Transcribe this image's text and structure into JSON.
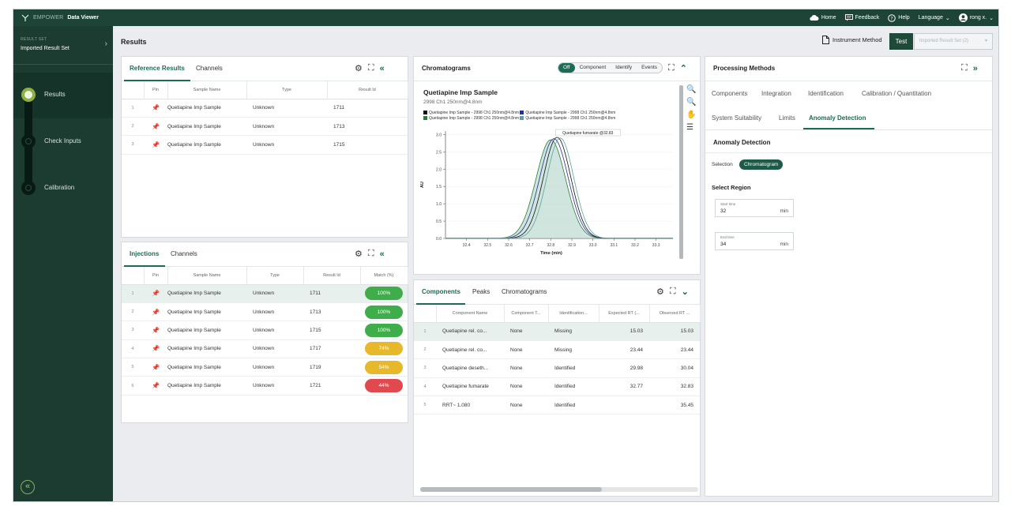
{
  "app": {
    "brand_prefix": "EMPOWER",
    "brand_name": "Data Viewer"
  },
  "topnav": {
    "home": "Home",
    "feedback": "Feedback",
    "help": "Help",
    "language": "Language",
    "user": "rong x."
  },
  "sidebar": {
    "result_set_label": "RESULT SET",
    "result_set_value": "Imported Result Set",
    "steps": [
      {
        "label": "Results",
        "active": true
      },
      {
        "label": "Check Inputs",
        "active": false
      },
      {
        "label": "Calibration",
        "active": false
      }
    ]
  },
  "header": {
    "title": "Results",
    "instrument_method": "Instrument Method",
    "test_button": "Test",
    "result_set_select": "Imported Result Set (2)"
  },
  "reference_results": {
    "tabs": [
      "Reference Results",
      "Channels"
    ],
    "columns": [
      "Pin",
      "Sample Name",
      "Type",
      "Result Id"
    ],
    "rows": [
      {
        "n": "1",
        "name": "Quetiapine Imp Sample",
        "type": "Unknown",
        "id": "1711"
      },
      {
        "n": "2",
        "name": "Quetiapine Imp Sample",
        "type": "Unknown",
        "id": "1713"
      },
      {
        "n": "3",
        "name": "Quetiapine Imp Sample",
        "type": "Unknown",
        "id": "1715"
      }
    ]
  },
  "injections": {
    "tabs": [
      "Injections",
      "Channels"
    ],
    "columns": [
      "Pin",
      "Sample Name",
      "Type",
      "Result Id",
      "Match (%)"
    ],
    "rows": [
      {
        "n": "1",
        "name": "Quetiapine Imp Sample",
        "type": "Unknown",
        "id": "1711",
        "match": "100%",
        "color": "#3fae4a"
      },
      {
        "n": "2",
        "name": "Quetiapine Imp Sample",
        "type": "Unknown",
        "id": "1713",
        "match": "100%",
        "color": "#3fae4a"
      },
      {
        "n": "3",
        "name": "Quetiapine Imp Sample",
        "type": "Unknown",
        "id": "1715",
        "match": "100%",
        "color": "#3fae4a"
      },
      {
        "n": "4",
        "name": "Quetiapine Imp Sample",
        "type": "Unknown",
        "id": "1717",
        "match": "74%",
        "color": "#e7b92a"
      },
      {
        "n": "5",
        "name": "Quetiapine Imp Sample",
        "type": "Unknown",
        "id": "1719",
        "match": "54%",
        "color": "#e7b92a"
      },
      {
        "n": "6",
        "name": "Quetiapine Imp Sample",
        "type": "Unknown",
        "id": "1721",
        "match": "44%",
        "color": "#e04a4f"
      }
    ]
  },
  "chromatograms": {
    "title": "Chromatograms",
    "toggle": [
      "Off",
      "Component",
      "Identify",
      "Events"
    ],
    "sample_title": "Quetiapine Imp Sample",
    "sample_sub": "2998 Ch1 250nm@4.8nm",
    "legend": [
      {
        "label": "Quetiapine Imp Sample - 2998 Ch1 250nm@4.8nm",
        "color": "#111111"
      },
      {
        "label": "Quetiapine Imp Sample - 2998 Ch1 250nm@4.8nm",
        "color": "#23318f"
      },
      {
        "label": "Quetiapine Imp Sample - 2998 Ch1 250nm@4.8nm",
        "color": "#2d7a3a"
      },
      {
        "label": "Quetiapine Imp Sample - 2998 Ch1 250nm@4.8nm",
        "color": "#5aa0a0"
      }
    ]
  },
  "chart_data": {
    "type": "line",
    "title": "Quetiapine Imp Sample",
    "xlabel": "Time (min)",
    "ylabel": "AU",
    "xlim": [
      32.3,
      33.38
    ],
    "ylim": [
      0.0,
      3.1
    ],
    "xticks": [
      "32.4",
      "32.5",
      "32.6",
      "32.7",
      "32.8",
      "32.9",
      "33.0",
      "33.1",
      "33.2",
      "33.3"
    ],
    "yticks": [
      "0.0",
      "0.5",
      "1.0",
      "1.5",
      "2.0",
      "2.5",
      "3.0"
    ],
    "annotation": "Quetiapine fumarate @32.83",
    "series": [
      {
        "color": "#111111",
        "center": 32.83,
        "sigma": 0.065,
        "peak": 2.92
      },
      {
        "color": "#23318f",
        "center": 32.815,
        "sigma": 0.068,
        "peak": 2.88
      },
      {
        "color": "#2d7a3a",
        "center": 32.8,
        "sigma": 0.07,
        "peak": 2.85
      },
      {
        "color": "#5aa0a0",
        "center": 32.845,
        "sigma": 0.064,
        "peak": 2.9
      }
    ]
  },
  "components": {
    "tabs": [
      "Components",
      "Peaks",
      "Chromatograms"
    ],
    "columns": [
      "Component Name",
      "Component T...",
      "Identification...",
      "Expected RT (...",
      "Observed RT ..."
    ],
    "rows": [
      {
        "n": "1",
        "name": "Quetiapine rel. co...",
        "type": "None",
        "id": "Missing",
        "exp": "15.03",
        "obs": "15.03"
      },
      {
        "n": "2",
        "name": "Quetiapine rel. co...",
        "type": "None",
        "id": "Missing",
        "exp": "23.44",
        "obs": "23.44"
      },
      {
        "n": "3",
        "name": "Quetiapine deseth...",
        "type": "None",
        "id": "Identified",
        "exp": "29.98",
        "obs": "30.04"
      },
      {
        "n": "4",
        "name": "Quetiapine fumarate",
        "type": "None",
        "id": "Identified",
        "exp": "32.77",
        "obs": "32.83"
      },
      {
        "n": "5",
        "name": "RRT~ 1.080",
        "type": "None",
        "id": "Identified",
        "exp": "",
        "obs": "35.45"
      }
    ]
  },
  "processing": {
    "title": "Processing Methods",
    "tabs_row1": [
      "Components",
      "Integration",
      "Identification",
      "Calibration / Quantitation"
    ],
    "tabs_row2": [
      "System Suitability",
      "Limits",
      "Anomaly Detection"
    ],
    "section_title": "Anomaly Detection",
    "selection_label": "Selection",
    "selection_chip": "Chromatogram",
    "region_title": "Select Region",
    "start": {
      "label": "Start time",
      "value": "32",
      "unit": "min"
    },
    "end": {
      "label": "End time",
      "value": "34",
      "unit": "min"
    }
  }
}
